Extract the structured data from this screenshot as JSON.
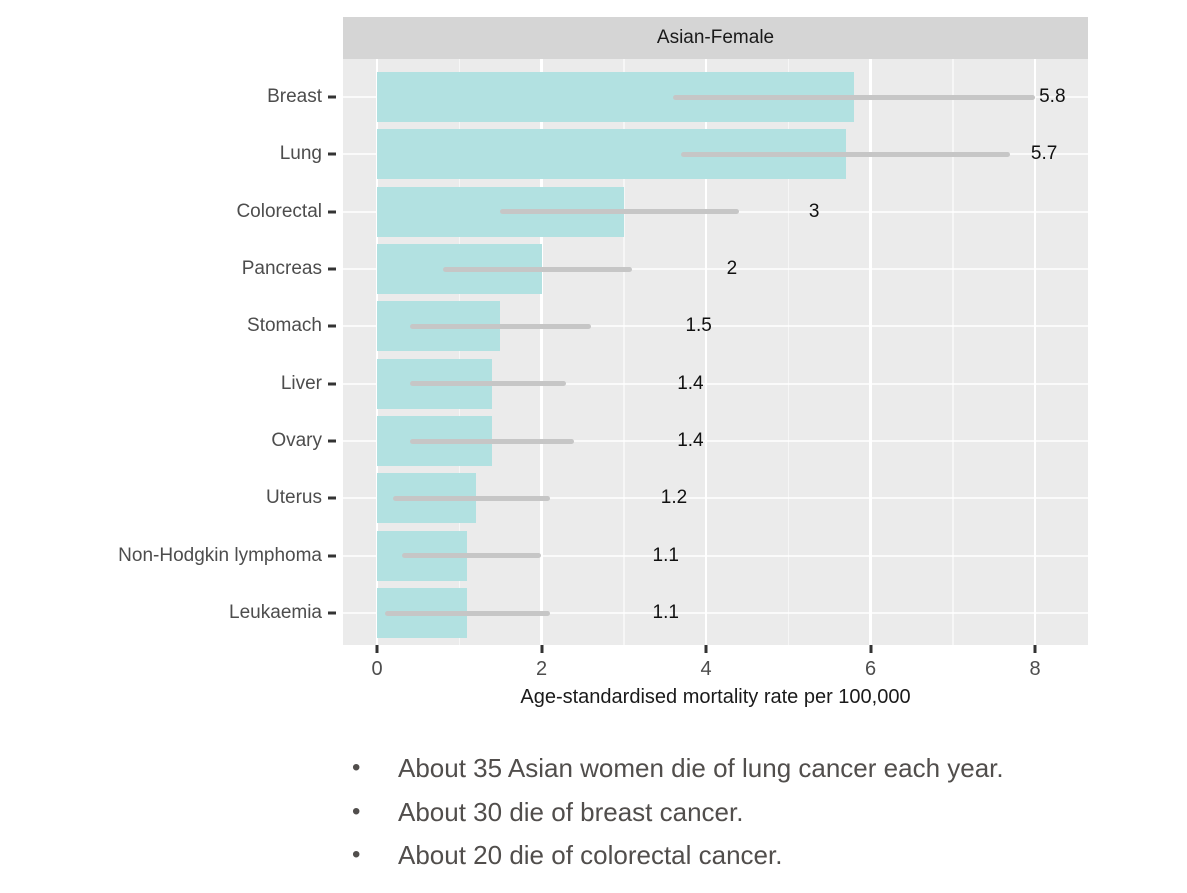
{
  "chart_data": {
    "type": "bar",
    "orientation": "horizontal",
    "title": "Asian-Female",
    "xlabel": "Age-standardised mortality rate per 100,000",
    "categories": [
      "Breast",
      "Lung",
      "Colorectal",
      "Pancreas",
      "Stomach",
      "Liver",
      "Ovary",
      "Uterus",
      "Non-Hodgkin lymphoma",
      "Leukaemia"
    ],
    "values": [
      5.8,
      5.7,
      3,
      2,
      1.5,
      1.4,
      1.4,
      1.2,
      1.1,
      1.1
    ],
    "value_labels": [
      "5.8",
      "5.7",
      "3",
      "2",
      "1.5",
      "1.4",
      "1.4",
      "1.2",
      "1.1",
      "1.1"
    ],
    "ci_low": [
      3.6,
      3.7,
      1.5,
      0.8,
      0.4,
      0.4,
      0.4,
      0.2,
      0.3,
      0.1
    ],
    "ci_high": [
      8.0,
      7.7,
      4.4,
      3.1,
      2.6,
      2.3,
      2.4,
      2.1,
      2.0,
      2.1
    ],
    "xticks": [
      0,
      2,
      4,
      6,
      8
    ],
    "minor_ticks": [
      1,
      3,
      5,
      7
    ],
    "xlim": [
      -0.4,
      8.6
    ],
    "grid": true,
    "legend": "none",
    "colors": {
      "bar": "#B2E1E1",
      "error_bar": "#C6C6C6",
      "panel_bg": "#EBEBEB",
      "strip_bg": "#D5D5D5",
      "gridline": "#FFFFFF",
      "axis_text": "#4D4D4D",
      "label_text": "#111111"
    }
  },
  "bullets": {
    "items": [
      "About 35 Asian women die of lung cancer each year.",
      "About 30 die of breast cancer.",
      "About 20 die of colorectal cancer."
    ],
    "marker": "•"
  }
}
